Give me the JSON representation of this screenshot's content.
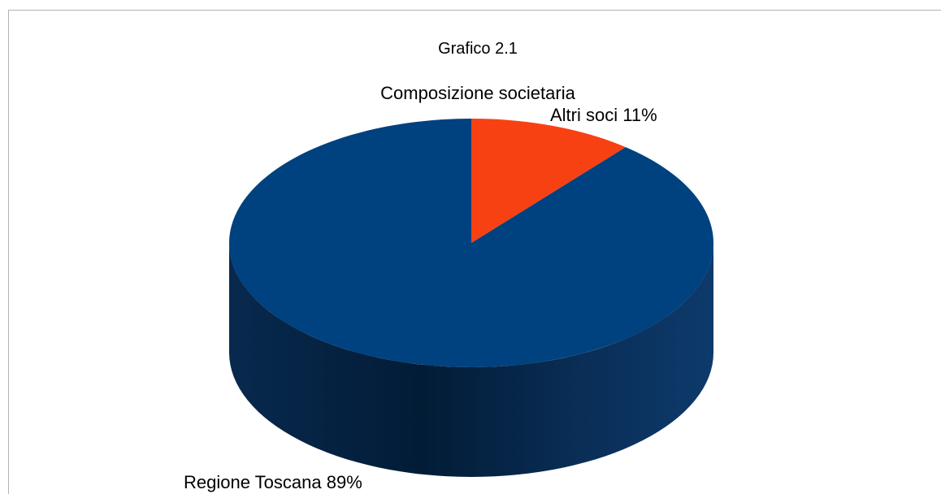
{
  "chart_data": {
    "type": "pie",
    "title": "Grafico 2.1",
    "subtitle": "Composizione societaria",
    "categories": [
      "Altri soci",
      "Regione Toscana"
    ],
    "values": [
      11,
      89
    ],
    "unit": "%",
    "data_labels": [
      "Altri soci 11%",
      "Regione Toscana 89%"
    ],
    "colors": [
      "#f84113",
      "#00417f"
    ],
    "style": "3d-cylinder-pie",
    "legend": "none",
    "start_angle": "12 o'clock, clockwise"
  }
}
